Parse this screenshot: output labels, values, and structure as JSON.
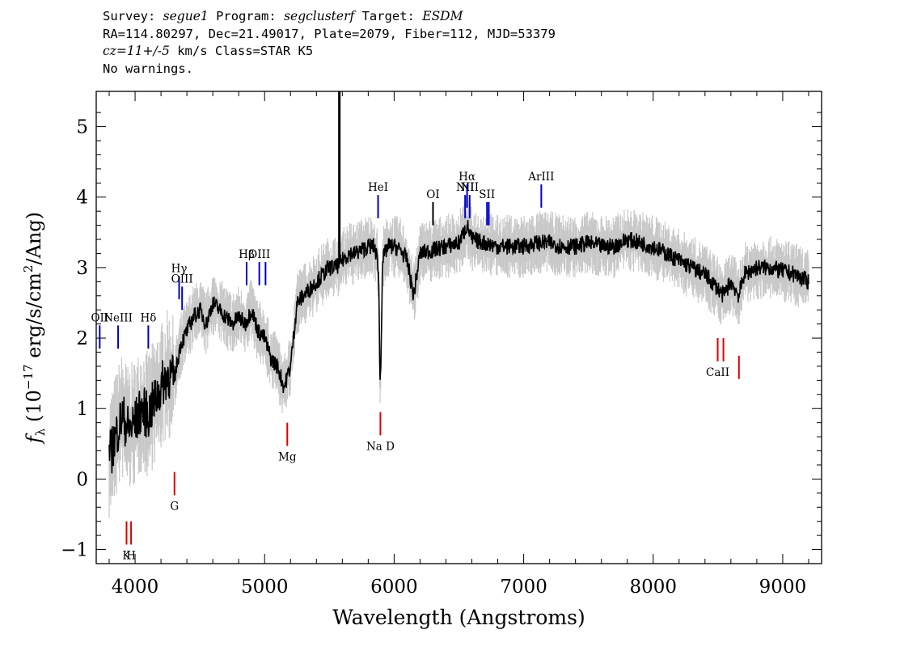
{
  "header": {
    "line1": {
      "survey_label": "Survey: ",
      "survey": "segue1",
      "program_label": " Program: ",
      "program": "segclusterf",
      "target_label": " Target: ",
      "target": "ESDM"
    },
    "line2": "RA=114.80297, Dec=21.49017, Plate=2079, Fiber=112, MJD=53379",
    "line3": {
      "cz": "cz=11+/-5",
      "rest": " km/s Class=STAR K5"
    },
    "line4": "No warnings."
  },
  "chart_data": {
    "type": "line",
    "title": "",
    "xlabel": "Wavelength (Angstroms)",
    "ylabel_prefix": "f",
    "ylabel_sub": "λ",
    "ylabel_main": " (10",
    "ylabel_exp": "−17",
    "ylabel_units": " erg/s/cm",
    "ylabel_units_exp": "2",
    "ylabel_end": "/Ang)",
    "xlim": [
      3700,
      9300
    ],
    "ylim": [
      -1.2,
      5.5
    ],
    "xticks": [
      4000,
      5000,
      6000,
      7000,
      8000,
      9000
    ],
    "yticks": [
      -1,
      0,
      1,
      2,
      3,
      4,
      5
    ],
    "series": [
      {
        "color": "#000000",
        "error_color": "#c8c8c8",
        "x": [
          3800,
          3850,
          3900,
          3950,
          4000,
          4050,
          4100,
          4150,
          4200,
          4250,
          4300,
          4350,
          4400,
          4450,
          4500,
          4550,
          4600,
          4650,
          4700,
          4750,
          4800,
          4850,
          4900,
          4950,
          5000,
          5050,
          5100,
          5150,
          5200,
          5250,
          5300,
          5350,
          5400,
          5450,
          5500,
          5550,
          5600,
          5650,
          5700,
          5750,
          5800,
          5850,
          5880,
          5890,
          5896,
          5910,
          5950,
          6000,
          6050,
          6100,
          6150,
          6200,
          6300,
          6400,
          6500,
          6563,
          6600,
          6700,
          6800,
          6900,
          7000,
          7100,
          7200,
          7300,
          7400,
          7500,
          7600,
          7700,
          7800,
          7900,
          8000,
          8100,
          8200,
          8300,
          8400,
          8500,
          8542,
          8600,
          8662,
          8700,
          8800,
          8900,
          9000,
          9100,
          9200
        ],
        "y": [
          0.3,
          0.6,
          0.9,
          0.7,
          0.8,
          1.0,
          0.9,
          1.1,
          1.3,
          1.5,
          1.4,
          1.9,
          2.1,
          2.3,
          2.4,
          2.2,
          2.5,
          2.4,
          2.3,
          2.2,
          2.3,
          2.2,
          2.4,
          2.1,
          2.0,
          1.7,
          1.6,
          1.3,
          1.6,
          2.5,
          2.6,
          2.7,
          2.8,
          2.9,
          3.0,
          3.0,
          3.1,
          3.2,
          3.2,
          3.25,
          3.3,
          3.3,
          3.0,
          1.4,
          1.5,
          3.1,
          3.3,
          3.3,
          3.25,
          3.1,
          2.6,
          3.2,
          3.25,
          3.3,
          3.35,
          3.6,
          3.4,
          3.35,
          3.3,
          3.3,
          3.3,
          3.35,
          3.35,
          3.3,
          3.3,
          3.35,
          3.3,
          3.3,
          3.4,
          3.35,
          3.3,
          3.2,
          3.1,
          3.0,
          2.9,
          2.7,
          2.6,
          2.8,
          2.6,
          2.9,
          3.0,
          3.0,
          2.95,
          2.9,
          2.8
        ],
        "spikes": [
          {
            "x": 5577,
            "y": 5.5
          }
        ]
      }
    ],
    "emission_lines": [
      {
        "label": "OII",
        "x": 3727,
        "y": 1.85,
        "color": "#0000cc"
      },
      {
        "label": "NeIII",
        "x": 3869,
        "y": 1.85,
        "color": "#0000cc"
      },
      {
        "label": "Hδ",
        "x": 4102,
        "y": 1.85,
        "color": "#0000cc"
      },
      {
        "label": "Hγ",
        "x": 4340,
        "y": 2.55,
        "color": "#0000cc"
      },
      {
        "label": "OIII",
        "x": 4363,
        "y": 2.4,
        "color": "#0000cc"
      },
      {
        "label": "Hβ",
        "x": 4861,
        "y": 2.75,
        "color": "#0000cc"
      },
      {
        "label": "OIII",
        "x": 4959,
        "y": 2.75,
        "color": "#0000cc"
      },
      {
        "label": "",
        "x": 5007,
        "y": 2.75,
        "color": "#0000cc"
      },
      {
        "label": "HeI",
        "x": 5876,
        "y": 3.7,
        "color": "#0000cc"
      },
      {
        "label": "OI",
        "x": 6300,
        "y": 3.6,
        "color": "#000000"
      },
      {
        "label": "NII",
        "x": 6548,
        "y": 3.7,
        "color": "#0000cc"
      },
      {
        "label": "Hα",
        "x": 6563,
        "y": 3.85,
        "color": "#0000cc"
      },
      {
        "label": "NII",
        "x": 6583,
        "y": 3.7,
        "color": "#0000cc"
      },
      {
        "label": "SII",
        "x": 6717,
        "y": 3.6,
        "color": "#0000cc"
      },
      {
        "label": "",
        "x": 6731,
        "y": 3.6,
        "color": "#0000cc"
      },
      {
        "label": "ArIII",
        "x": 7136,
        "y": 3.85,
        "color": "#0000cc"
      }
    ],
    "absorption_lines": [
      {
        "label": "K",
        "x": 3934,
        "y": -0.6,
        "color": "#dd0000"
      },
      {
        "label": "H",
        "x": 3969,
        "y": -0.6,
        "color": "#dd0000"
      },
      {
        "label": "G",
        "x": 4304,
        "y": 0.1,
        "color": "#dd0000"
      },
      {
        "label": "Mg",
        "x": 5175,
        "y": 0.8,
        "color": "#dd0000"
      },
      {
        "label": "Na D",
        "x": 5894,
        "y": 0.95,
        "color": "#dd0000"
      },
      {
        "label": "CaII",
        "x": 8498,
        "y": 2.0,
        "color": "#dd0000"
      },
      {
        "label": "",
        "x": 8542,
        "y": 2.0,
        "color": "#dd0000"
      },
      {
        "label": "",
        "x": 8662,
        "y": 1.75,
        "color": "#dd0000"
      }
    ]
  }
}
